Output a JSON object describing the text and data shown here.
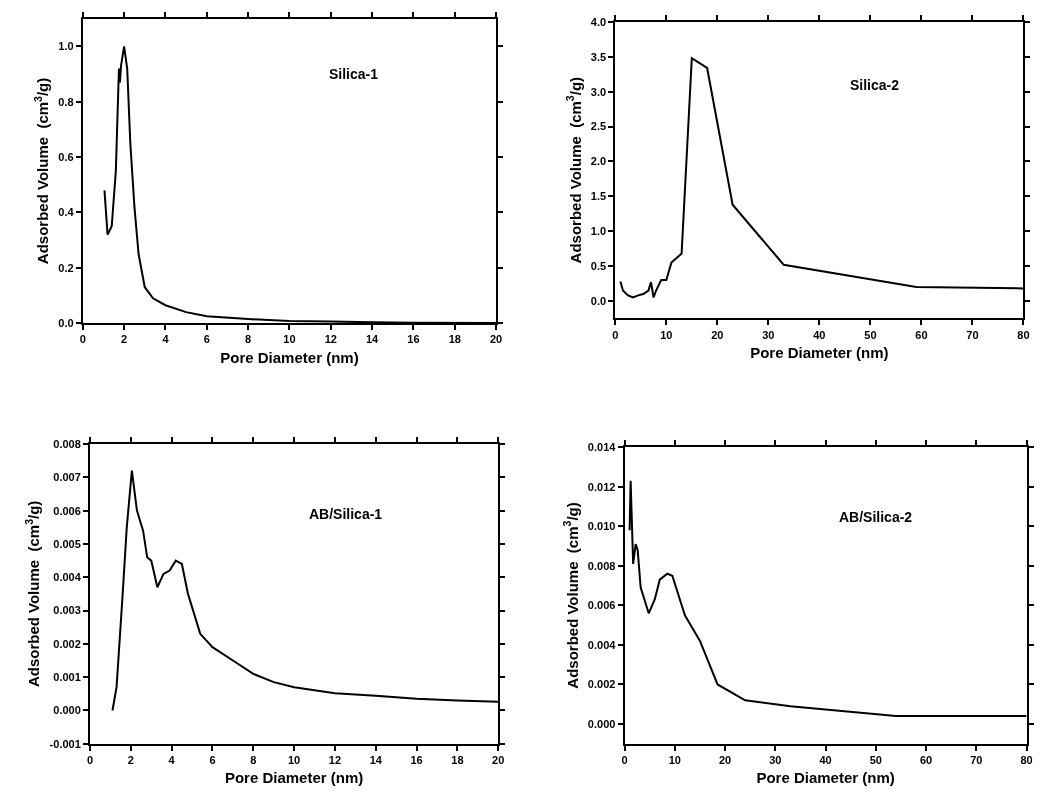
{
  "chart_data": [
    {
      "type": "line",
      "xlabel": "Pore Diameter (nm)",
      "ylabel": "Adsorbed Volume  (cm$^{3}$/g)",
      "annotations": [
        "Silica-1"
      ],
      "marker": "none",
      "line_style": "solid",
      "xlim": [
        0,
        20
      ],
      "xticks": [
        0,
        2,
        4,
        6,
        8,
        10,
        12,
        14,
        16,
        18,
        20
      ],
      "ylim": [
        0,
        1.1
      ],
      "yticks": [
        {
          "value": 0,
          "label": "0.0"
        },
        0.2,
        0.4,
        0.6,
        0.8,
        {
          "value": 1,
          "label": "1.0"
        }
      ],
      "series": [
        {
          "color": "#000000",
          "x": [
            1.05,
            1.2,
            1.4,
            1.6,
            1.75,
            1.8,
            1.85,
            2.0,
            2.15,
            2.3,
            2.5,
            2.7,
            3.0,
            3.4,
            4,
            5,
            6,
            8,
            10,
            12,
            14,
            16,
            20
          ],
          "values": [
            0.48,
            0.32,
            0.35,
            0.55,
            0.92,
            0.87,
            0.93,
            1.0,
            0.92,
            0.65,
            0.42,
            0.25,
            0.13,
            0.09,
            0.065,
            0.04,
            0.025,
            0.015,
            0.008,
            0.006,
            0.003,
            0.002,
            0.001
          ]
        }
      ]
    },
    {
      "type": "line",
      "xlabel": "Pore Diameter (nm)",
      "ylabel": "Adsorbed Volume  (cm$^{3}$/g)",
      "annotations": [
        "Silica-2"
      ],
      "marker": "none",
      "line_style": "solid",
      "xlim": [
        0,
        80
      ],
      "xticks": [
        0,
        10,
        20,
        30,
        40,
        50,
        60,
        70,
        80
      ],
      "ylim": [
        -0.25,
        4.0
      ],
      "yticks": [
        {
          "value": 0,
          "label": "0.0"
        },
        0.5,
        {
          "value": 1,
          "label": "1.0"
        },
        1.5,
        {
          "value": 2,
          "label": "2.0"
        },
        2.5,
        {
          "value": 3,
          "label": "3.0"
        },
        3.5,
        {
          "value": 4,
          "label": "4.0"
        }
      ],
      "series": [
        {
          "color": "#000000",
          "x": [
            1,
            1.5,
            2.5,
            3.5,
            4.5,
            5.5,
            6.5,
            7,
            7.5,
            8,
            9,
            10,
            11,
            13,
            15,
            18,
            23,
            33,
            59,
            80
          ],
          "values": [
            0.28,
            0.15,
            0.08,
            0.05,
            0.08,
            0.1,
            0.15,
            0.27,
            0.05,
            0.15,
            0.3,
            0.3,
            0.55,
            0.68,
            3.48,
            3.34,
            1.38,
            0.52,
            0.2,
            0.18
          ]
        }
      ]
    },
    {
      "type": "line",
      "xlabel": "Pore Diameter (nm)",
      "ylabel": "Adsorbed Volume  (cm$^{3}$/g)",
      "annotations": [
        "AB/Silica-1"
      ],
      "marker": "none",
      "line_style": "solid",
      "xlim": [
        0,
        20
      ],
      "xticks": [
        0,
        2,
        4,
        6,
        8,
        10,
        12,
        14,
        16,
        18,
        20
      ],
      "ylim": [
        -0.001,
        0.008
      ],
      "yticks": [
        {
          "value": -0.001,
          "label": "-0.001"
        },
        {
          "value": 0,
          "label": "0.000"
        },
        0.001,
        0.002,
        0.003,
        0.004,
        0.005,
        0.006,
        0.007,
        0.008
      ],
      "series": [
        {
          "color": "#000000",
          "x": [
            1.1,
            1.3,
            1.6,
            1.8,
            2.05,
            2.3,
            2.6,
            2.8,
            3.0,
            3.3,
            3.6,
            3.9,
            4.2,
            4.5,
            4.8,
            5.4,
            6,
            7,
            8,
            9,
            10,
            12,
            14,
            16,
            18,
            20
          ],
          "values": [
            0.0,
            0.0007,
            0.0035,
            0.0055,
            0.0072,
            0.006,
            0.0054,
            0.0046,
            0.0045,
            0.0037,
            0.0041,
            0.0042,
            0.0045,
            0.0044,
            0.0035,
            0.0023,
            0.0019,
            0.0015,
            0.0011,
            0.00085,
            0.0007,
            0.00052,
            0.00044,
            0.00035,
            0.0003,
            0.00026
          ]
        }
      ]
    },
    {
      "type": "line",
      "xlabel": "Pore Diameter (nm)",
      "ylabel": "Adsorbed Volume  (cm$^{3}$/g)",
      "annotations": [
        "AB/Silica-2"
      ],
      "marker": "none",
      "line_style": "solid",
      "xlim": [
        0,
        80
      ],
      "xticks": [
        0,
        10,
        20,
        30,
        40,
        50,
        60,
        70,
        80
      ],
      "ylim": [
        -0.001,
        0.014
      ],
      "yticks": [
        {
          "value": 0,
          "label": "0.000"
        },
        0.002,
        0.004,
        0.006,
        0.008,
        {
          "value": 0.01,
          "label": "0.010"
        },
        0.012,
        0.014
      ],
      "series": [
        {
          "color": "#000000",
          "x": [
            1,
            1.2,
            1.7,
            2.2,
            2.6,
            3.2,
            4.8,
            6,
            7,
            8.5,
            9.5,
            12,
            15,
            18.5,
            24,
            33,
            54,
            80
          ],
          "values": [
            0.0098,
            0.0123,
            0.0081,
            0.0091,
            0.0088,
            0.0069,
            0.0056,
            0.0063,
            0.0073,
            0.0076,
            0.0075,
            0.0055,
            0.0042,
            0.002,
            0.0012,
            0.0009,
            0.0004,
            0.0004
          ]
        }
      ]
    }
  ]
}
